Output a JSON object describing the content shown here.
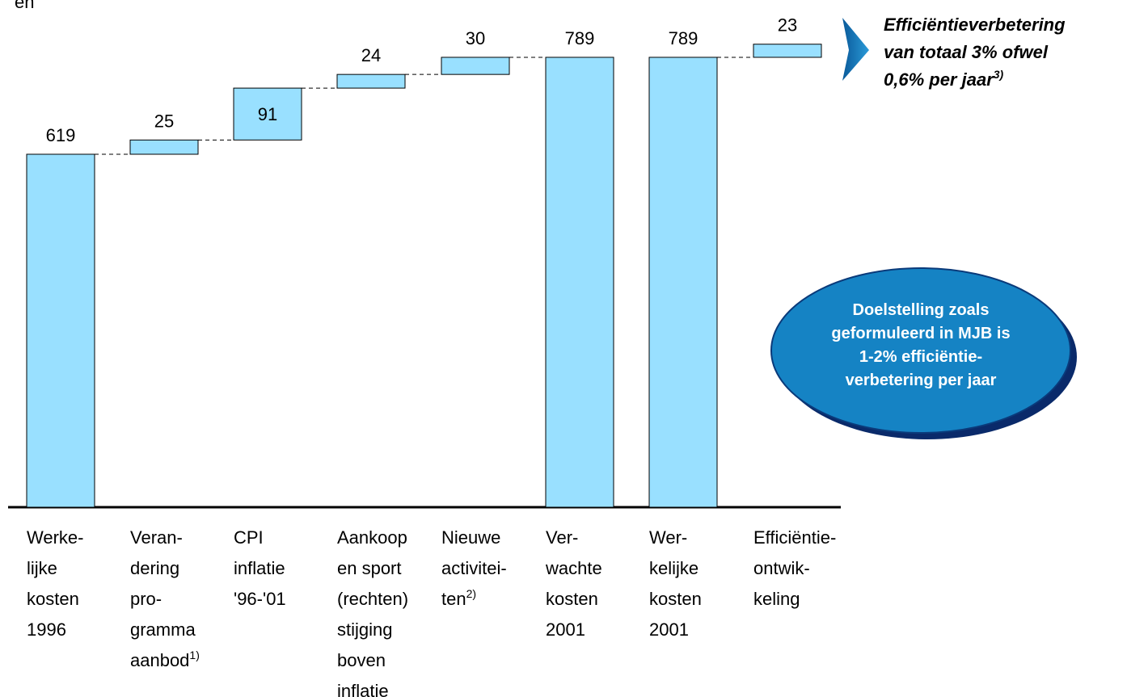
{
  "title": "en",
  "chart_data": {
    "type": "waterfall",
    "categories": [
      {
        "lines": [
          "Werke-",
          "lijke",
          "kosten",
          "1996"
        ]
      },
      {
        "lines": [
          "Veran-",
          "dering",
          "pro-",
          "gramma",
          "aanbod"
        ],
        "note": "1)"
      },
      {
        "lines": [
          "CPI",
          "inflatie",
          "'96-'01"
        ]
      },
      {
        "lines": [
          "Aankoop",
          "en sport",
          "(rechten)",
          "stijging",
          "boven",
          "inflatie"
        ]
      },
      {
        "lines": [
          "Nieuwe",
          "activitei-",
          "ten"
        ],
        "note": "2)"
      },
      {
        "lines": [
          "Ver-",
          "wachte",
          "kosten",
          "2001"
        ]
      },
      {
        "lines": [
          "Wer-",
          "kelijke",
          "kosten",
          "2001"
        ]
      },
      {
        "lines": [
          "Efficiëntie-",
          "ontwik-",
          "keling"
        ]
      }
    ],
    "values": [
      619,
      25,
      91,
      24,
      30,
      789,
      789,
      23
    ],
    "measure": [
      "absolute",
      "relative",
      "relative",
      "relative",
      "relative",
      "absolute",
      "absolute",
      "relative"
    ],
    "color": "#99e0ff"
  },
  "callout": {
    "lines": [
      "Efficiëntieverbetering",
      "van totaal 3% ofwel",
      "0,6% per jaar"
    ],
    "note": "3)"
  },
  "bubble": {
    "lines": [
      "Doelstelling zoals",
      "geformuleerd in MJB is",
      "1-2% efficiëntie-",
      "verbetering per jaar"
    ]
  }
}
